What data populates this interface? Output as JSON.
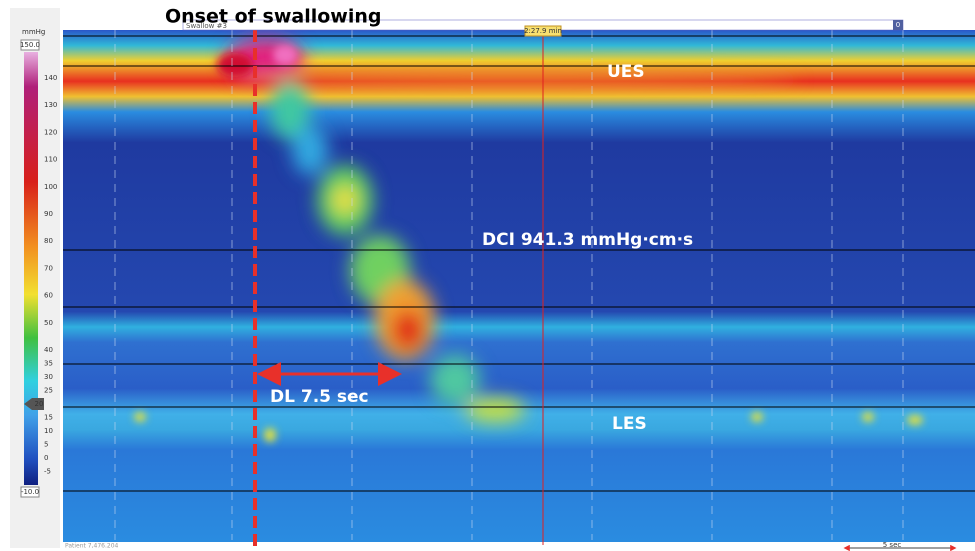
{
  "colorbar": {
    "unit": "mmHg",
    "max": "150.0",
    "min": "-10.0",
    "ticks": [
      140,
      130,
      120,
      110,
      100,
      90,
      80,
      70,
      60,
      50,
      40,
      35,
      30,
      25,
      15,
      10,
      5,
      0,
      -5
    ],
    "marker": "20"
  },
  "annotations": {
    "onset": "Onset of swallowing",
    "ues": "UES",
    "dci": "DCI 941.3 mmHg·cm·s",
    "dl": "DL 7.5 sec",
    "les": "LES"
  },
  "toolbar": {
    "swallow": "Swallow #3",
    "time": "2:27.9 min",
    "box": "0"
  },
  "footer": {
    "patient": "Patient 7,476.204",
    "scale": "5 sec"
  }
}
